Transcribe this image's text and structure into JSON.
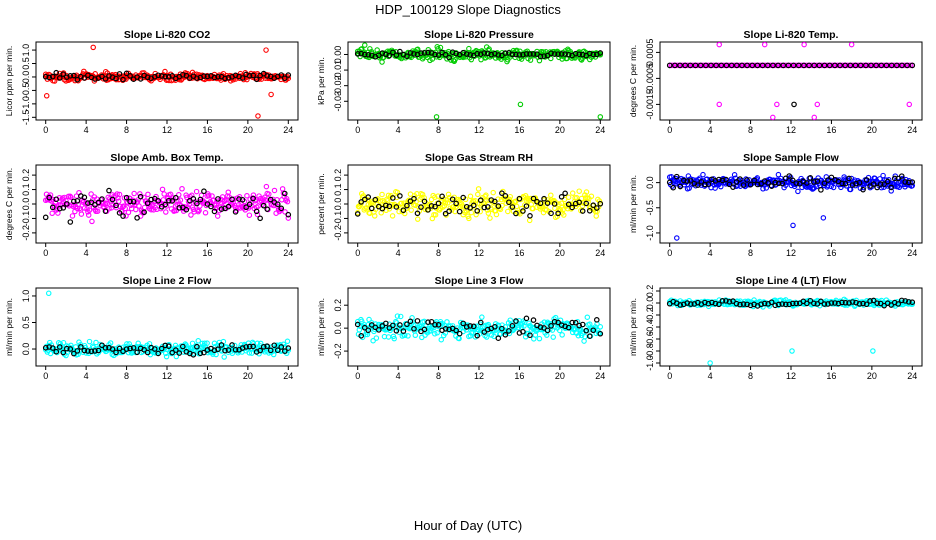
{
  "title": "HDP_100129  Slope Diagnostics",
  "xlabel": "Hour of Day (UTC)",
  "colors": {
    "overlay": "#000000",
    "axis": "#000000",
    "background": "#ffffff"
  },
  "chart_data": [
    {
      "type": "scatter",
      "title": "Slope Li-820 CO2",
      "ylabel": "Licor ppm per min.",
      "color": "#ff0000",
      "xlim": [
        0,
        24
      ],
      "ylim": [
        -1.6,
        1.3
      ],
      "xticks": [
        0,
        4,
        8,
        12,
        16,
        20,
        24
      ],
      "yticks": [
        -1.5,
        -1.0,
        -0.5,
        0.0,
        0.5,
        1.0
      ],
      "ytick_labels": [
        "-1.5",
        "-1.0",
        "-0.5",
        "0.0",
        "0.5",
        "1.0"
      ],
      "spread": 0.14,
      "black_spread": 0.12,
      "outliers": [
        [
          4.7,
          1.1
        ],
        [
          21.8,
          1.0
        ],
        [
          21.0,
          -1.45
        ],
        [
          0.1,
          -0.7
        ],
        [
          22.3,
          -0.65
        ]
      ]
    },
    {
      "type": "scatter",
      "title": "Slope Li-820 Pressure",
      "ylabel": "kPa per min.",
      "color": "#00cc00",
      "xlim": [
        0,
        24
      ],
      "ylim": [
        -0.042,
        0.008
      ],
      "xticks": [
        0,
        4,
        8,
        12,
        16,
        20,
        24
      ],
      "yticks": [
        0.0,
        -0.01,
        -0.02,
        -0.03
      ],
      "ytick_labels": [
        "0.00",
        "-0.01",
        "-0.02",
        "-0.03"
      ],
      "spread": 0.0035,
      "black_spread": 0.0015,
      "outliers": [
        [
          7.8,
          -0.04
        ],
        [
          16.1,
          -0.032
        ],
        [
          24.0,
          -0.04
        ],
        [
          0.7,
          0.006
        ]
      ]
    },
    {
      "type": "scatter",
      "title": "Slope Li-820 Temp.",
      "ylabel": "degrees C per min.",
      "color": "#ff00ff",
      "xlim": [
        0,
        24
      ],
      "ylim": [
        -0.0021,
        0.0009
      ],
      "xticks": [
        0,
        4,
        8,
        12,
        16,
        20,
        24
      ],
      "yticks": [
        0.0005,
        -0.0005,
        -0.0015
      ],
      "ytick_labels": [
        "0.0005",
        "-0.0005",
        "-0.0015"
      ],
      "spread": 0,
      "black_spread": 0,
      "outliers": [
        [
          4.9,
          0.0008
        ],
        [
          9.4,
          0.0008
        ],
        [
          13.3,
          0.0008
        ],
        [
          18.0,
          0.0008
        ],
        [
          4.9,
          -0.0015
        ],
        [
          10.6,
          -0.0015
        ],
        [
          14.6,
          -0.0015
        ],
        [
          23.7,
          -0.0015
        ],
        [
          10.2,
          -0.002
        ],
        [
          14.3,
          -0.002
        ]
      ],
      "black_outliers": [
        [
          12.3,
          -0.0015
        ]
      ]
    },
    {
      "type": "scatter",
      "title": "Slope Amb. Box Temp.",
      "ylabel": "degrees C per min.",
      "color": "#ff00ff",
      "xlim": [
        0,
        24
      ],
      "ylim": [
        -0.27,
        0.27
      ],
      "xticks": [
        0,
        4,
        8,
        12,
        16,
        20,
        24
      ],
      "yticks": [
        -0.2,
        -0.1,
        0.0,
        0.1,
        0.2
      ],
      "ytick_labels": [
        "-0.2",
        "-0.1",
        "0.0",
        "0.1",
        "0.2"
      ],
      "spread": 0.085,
      "black_spread": 0.08,
      "outliers": []
    },
    {
      "type": "scatter",
      "title": "Slope Gas Stream RH",
      "ylabel": "percent per min.",
      "color": "#ffff00",
      "xlim": [
        0,
        24
      ],
      "ylim": [
        -0.27,
        0.27
      ],
      "xticks": [
        0,
        4,
        8,
        12,
        16,
        20,
        24
      ],
      "yticks": [
        -0.2,
        -0.1,
        0.0,
        0.1,
        0.2
      ],
      "ytick_labels": [
        "-0.2",
        "-0.1",
        "0.0",
        "0.1",
        "0.2"
      ],
      "spread": 0.085,
      "black_spread": 0.07,
      "outliers": []
    },
    {
      "type": "scatter",
      "title": "Slope Sample Flow",
      "ylabel": "ml/min per min.",
      "color": "#0000ff",
      "xlim": [
        0,
        24
      ],
      "ylim": [
        -1.2,
        0.35
      ],
      "xticks": [
        0,
        4,
        8,
        12,
        16,
        20,
        24
      ],
      "yticks": [
        0.0,
        -0.5,
        -1.0
      ],
      "ytick_labels": [
        "0.0",
        "-0.5",
        "-1.0"
      ],
      "spread": 0.12,
      "black_spread": 0.1,
      "outliers": [
        [
          0.7,
          -1.1
        ],
        [
          12.2,
          -0.85
        ],
        [
          15.2,
          -0.7
        ]
      ]
    },
    {
      "type": "scatter",
      "title": "Slope Line 2 Flow",
      "ylabel": "ml/min per min.",
      "color": "#00ffff",
      "xlim": [
        0,
        24
      ],
      "ylim": [
        -0.32,
        1.15
      ],
      "xticks": [
        0,
        4,
        8,
        12,
        16,
        20,
        24
      ],
      "yticks": [
        0.0,
        0.5,
        1.0
      ],
      "ytick_labels": [
        "0.0",
        "0.5",
        "1.0"
      ],
      "spread": 0.12,
      "black_spread": 0.1,
      "outliers": [
        [
          0.3,
          1.05
        ]
      ]
    },
    {
      "type": "scatter",
      "title": "Slope Line 3 Flow",
      "ylabel": "ml/min per min.",
      "color": "#00ffff",
      "xlim": [
        0,
        24
      ],
      "ylim": [
        -0.33,
        0.35
      ],
      "xticks": [
        0,
        4,
        8,
        12,
        16,
        20,
        24
      ],
      "yticks": [
        -0.2,
        0.0,
        0.2
      ],
      "ytick_labels": [
        "-0.2",
        "0.0",
        "0.2"
      ],
      "spread": 0.09,
      "black_spread": 0.08,
      "outliers": []
    },
    {
      "type": "scatter",
      "title": "Slope Line 4 (LT) Flow",
      "ylabel": "ml/min per min.",
      "color": "#00ffff",
      "xlim": [
        0,
        24
      ],
      "ylim": [
        -1.05,
        0.25
      ],
      "xticks": [
        0,
        4,
        8,
        12,
        16,
        20,
        24
      ],
      "yticks": [
        0.2,
        0.0,
        -0.2,
        -0.4,
        -0.6,
        -0.8,
        -1.0
      ],
      "ytick_labels": [
        "0.2",
        "0.0",
        "-0.2",
        "-0.4",
        "-0.6",
        "-0.8",
        "-1.0"
      ],
      "spread": 0.045,
      "black_spread": 0.04,
      "outliers": [
        [
          4.0,
          -1.0
        ],
        [
          12.1,
          -0.8
        ],
        [
          20.1,
          -0.8
        ]
      ]
    }
  ]
}
